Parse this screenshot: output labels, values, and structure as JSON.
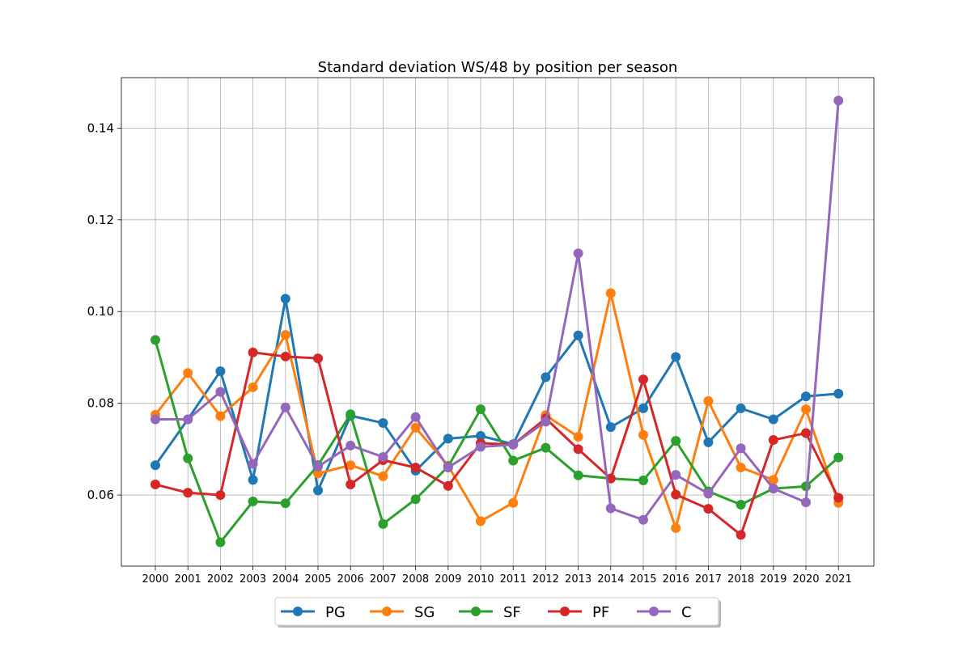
{
  "chart_data": {
    "type": "line",
    "title": "Standard deviation WS/48 by position per season",
    "xlabel": "",
    "ylabel": "",
    "categories": [
      "2000",
      "2001",
      "2002",
      "2003",
      "2004",
      "2005",
      "2006",
      "2007",
      "2008",
      "2009",
      "2010",
      "2011",
      "2012",
      "2013",
      "2014",
      "2015",
      "2016",
      "2017",
      "2018",
      "2019",
      "2020",
      "2021"
    ],
    "ylim": [
      0.0445,
      0.151
    ],
    "yticks": [
      0.06,
      0.08,
      0.1,
      0.12,
      0.14
    ],
    "ytick_labels": [
      "0.06",
      "0.08",
      "0.10",
      "0.12",
      "0.14"
    ],
    "grid": true,
    "legend_position": "bottom-center",
    "series": [
      {
        "name": "PG",
        "color": "#1f77b4",
        "values": [
          0.0665,
          0.0765,
          0.087,
          0.0633,
          0.1028,
          0.061,
          0.0773,
          0.0757,
          0.0653,
          0.0723,
          0.0729,
          0.0711,
          0.0857,
          0.0948,
          0.0748,
          0.0789,
          0.0901,
          0.0715,
          0.0789,
          0.0765,
          0.0815,
          0.0821
        ]
      },
      {
        "name": "SG",
        "color": "#ff7f0e",
        "values": [
          0.0775,
          0.0866,
          0.0772,
          0.0835,
          0.0949,
          0.0647,
          0.0665,
          0.0641,
          0.0747,
          0.0664,
          0.0543,
          0.0583,
          0.0774,
          0.0727,
          0.104,
          0.0731,
          0.0528,
          0.0805,
          0.066,
          0.0633,
          0.0787,
          0.0583
        ]
      },
      {
        "name": "SF",
        "color": "#2ca02c",
        "values": [
          0.0938,
          0.068,
          0.0497,
          0.0586,
          0.0582,
          0.0665,
          0.0776,
          0.0537,
          0.0591,
          0.0662,
          0.0787,
          0.0675,
          0.0703,
          0.0643,
          0.0636,
          0.0632,
          0.0718,
          0.0608,
          0.0579,
          0.0614,
          0.0619,
          0.0682
        ]
      },
      {
        "name": "PF",
        "color": "#d62728",
        "values": [
          0.0623,
          0.0605,
          0.06,
          0.0911,
          0.0902,
          0.0898,
          0.0623,
          0.0676,
          0.066,
          0.062,
          0.0713,
          0.071,
          0.0767,
          0.07,
          0.0636,
          0.0852,
          0.0601,
          0.057,
          0.0513,
          0.072,
          0.0735,
          0.0594
        ]
      },
      {
        "name": "C",
        "color": "#9467bd",
        "values": [
          0.0765,
          0.0765,
          0.0825,
          0.0668,
          0.0791,
          0.0662,
          0.0708,
          0.0683,
          0.077,
          0.066,
          0.0705,
          0.071,
          0.076,
          0.1127,
          0.0571,
          0.0546,
          0.0644,
          0.0603,
          0.0702,
          0.0614,
          0.0584,
          0.146
        ]
      }
    ]
  }
}
